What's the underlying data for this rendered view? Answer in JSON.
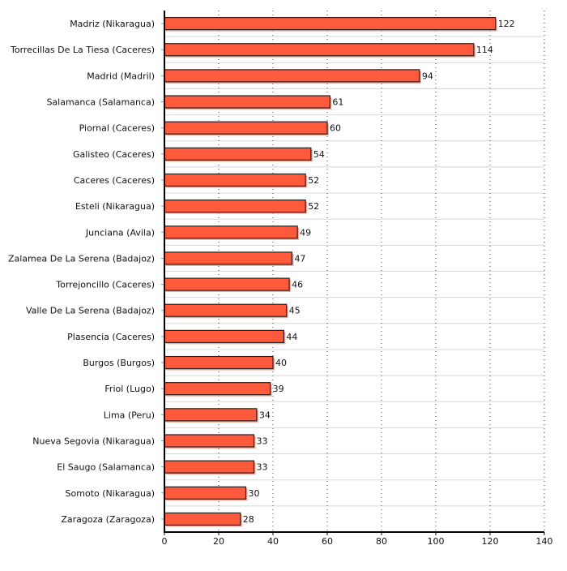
{
  "chart_data": {
    "type": "bar",
    "orientation": "horizontal",
    "categories": [
      "Madriz (Nikaragua)",
      "Torrecillas De La Tiesa (Caceres)",
      "Madrid (Madril)",
      "Salamanca (Salamanca)",
      "Piornal (Caceres)",
      "Galisteo (Caceres)",
      "Caceres (Caceres)",
      "Esteli (Nikaragua)",
      "Junciana (Avila)",
      "Zalamea De La Serena (Badajoz)",
      "Torrejoncillo (Caceres)",
      "Valle De La Serena (Badajoz)",
      "Plasencia (Caceres)",
      "Burgos (Burgos)",
      "Friol (Lugo)",
      "Lima (Peru)",
      "Nueva Segovia (Nikaragua)",
      "El Saugo (Salamanca)",
      "Somoto (Nikaragua)",
      "Zaragoza (Zaragoza)"
    ],
    "values": [
      122,
      114,
      94,
      61,
      60,
      54,
      52,
      52,
      49,
      47,
      46,
      45,
      44,
      40,
      39,
      34,
      33,
      33,
      30,
      28
    ],
    "xlim": [
      0,
      140
    ],
    "xticks": [
      0,
      20,
      40,
      60,
      80,
      100,
      120,
      140
    ],
    "grid": true,
    "bar_color": "#ff5a3c",
    "title": "",
    "xlabel": "",
    "ylabel": ""
  }
}
